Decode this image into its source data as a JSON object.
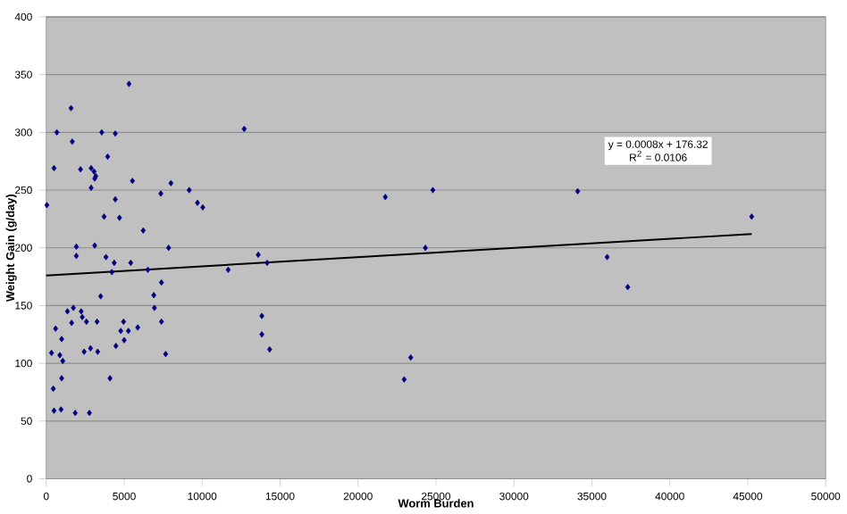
{
  "chart_data": {
    "type": "scatter",
    "xlabel": "Worm Burden",
    "ylabel": "Weight Gain (g/day)",
    "xlim": [
      0,
      50000
    ],
    "ylim": [
      0,
      400
    ],
    "xticks": [
      0,
      5000,
      10000,
      15000,
      20000,
      25000,
      30000,
      35000,
      40000,
      45000,
      50000
    ],
    "yticks": [
      0,
      50,
      100,
      150,
      200,
      250,
      300,
      350,
      400
    ],
    "grid": "y",
    "annotations": [
      "y = 0.0008x + 176.32",
      "R$^{2}$ = 0.0106"
    ],
    "series": [
      {
        "color": "#000080",
        "marker": "diamond",
        "x": [
          40,
          340,
          500,
          450,
          500,
          600,
          680,
          870,
          950,
          990,
          990,
          1060,
          1360,
          1590,
          1670,
          1630,
          1740,
          1860,
          1930,
          1930,
          2200,
          2240,
          2310,
          2430,
          2580,
          2770,
          2840,
          2880,
          2880,
          3070,
          3110,
          3110,
          3180,
          3260,
          3300,
          3490,
          3560,
          3710,
          3830,
          3940,
          4090,
          4210,
          4360,
          4430,
          4430,
          4470,
          4700,
          4780,
          4960,
          5000,
          5270,
          5310,
          5420,
          5530,
          5870,
          6220,
          6520,
          6900,
          6940,
          7350,
          7390,
          7390,
          7660,
          7850,
          8000,
          9170,
          9700,
          10040,
          11670,
          12700,
          13600,
          13830,
          13830,
          14170,
          14330,
          21750,
          24800,
          24320,
          23380,
          22960,
          34090,
          35980,
          37300,
          45250
        ],
        "values": [
          237,
          109,
          269,
          78,
          59,
          130,
          300,
          107,
          60,
          121,
          87,
          102,
          145,
          321,
          292,
          135,
          148,
          57,
          201,
          193,
          268,
          145,
          140,
          110,
          136,
          57,
          113,
          269,
          252,
          266,
          202,
          260,
          262,
          136,
          110,
          158,
          300,
          227,
          192,
          279,
          87,
          179,
          187,
          299,
          242,
          115,
          226,
          128,
          136,
          120,
          128,
          342,
          187,
          258,
          131,
          215,
          181,
          159,
          148,
          247,
          170,
          136,
          108,
          200,
          256,
          250,
          239,
          235,
          181,
          303,
          194,
          141,
          125,
          187,
          112,
          244,
          250,
          200,
          105,
          86,
          249,
          192,
          166,
          227
        ]
      },
      {
        "type": "line",
        "marker": "none",
        "color": "#000000",
        "x": [
          0,
          45250
        ],
        "values": [
          176,
          212
        ]
      }
    ]
  }
}
